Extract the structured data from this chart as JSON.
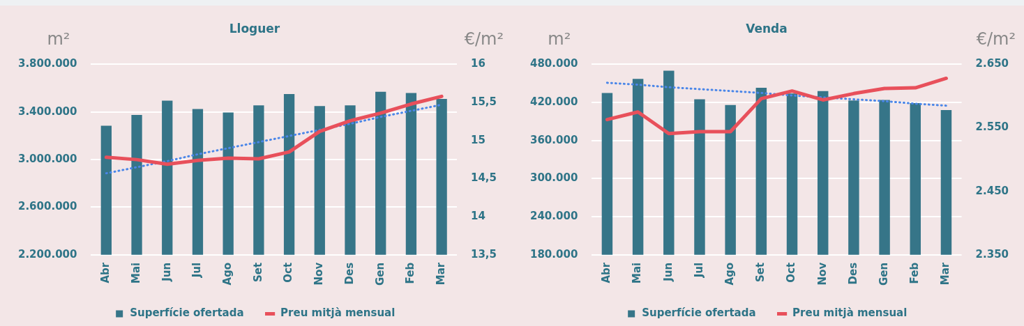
{
  "chart_data": [
    {
      "type": "bar",
      "title": "Lloguer",
      "ylabel": "m²",
      "y2label": "€/m²",
      "categories": [
        "Abr",
        "Mai",
        "Jun",
        "Jul",
        "Ago",
        "Set",
        "Oct",
        "Nov",
        "Des",
        "Gen",
        "Feb",
        "Mar"
      ],
      "series": [
        {
          "name": "Superfície ofertada",
          "color": "#367588",
          "values": [
            3285000,
            3375000,
            3495000,
            3425000,
            3395000,
            3455000,
            3550000,
            3450000,
            3455000,
            3570000,
            3560000,
            3510000
          ]
        },
        {
          "name": "Preu mitjà mensual",
          "type": "line",
          "axis": "y2",
          "color": "#e8505b",
          "values": [
            14.78,
            14.75,
            14.69,
            14.74,
            14.77,
            14.76,
            14.85,
            15.12,
            15.26,
            15.36,
            15.48,
            15.58
          ]
        },
        {
          "type": "line",
          "axis": "y2",
          "color": "#4a86e8",
          "line_style": "dotted",
          "values": [
            14.57,
            14.65,
            14.73,
            14.82,
            14.9,
            14.98,
            15.06,
            15.14,
            15.22,
            15.31,
            15.39,
            15.47
          ]
        }
      ],
      "ylim": [
        2200000,
        3800000
      ],
      "yticks": [
        {
          "value": 2200000,
          "label": "2.200.000"
        },
        {
          "value": 2600000,
          "label": "2.600.000"
        },
        {
          "value": 3000000,
          "label": "3.000.000"
        },
        {
          "value": 3400000,
          "label": "3.400.000"
        },
        {
          "value": 3800000,
          "label": "3.800.000"
        }
      ],
      "y2lim": [
        13.5,
        16
      ],
      "y2ticks": [
        {
          "value": 13.5,
          "label": "13,5"
        },
        14,
        {
          "value": 14.5,
          "label": "14,5"
        },
        15,
        {
          "value": 15.5,
          "label": "15,5"
        },
        16
      ],
      "grid": "y",
      "legend": "bottom",
      "marker": "none"
    },
    {
      "type": "bar",
      "title": "Venda",
      "ylabel": "m²",
      "y2label": "€/m²",
      "categories": [
        "Abr",
        "Mai",
        "Jun",
        "Jul",
        "Ago",
        "Set",
        "Oct",
        "Nov",
        "Des",
        "Gen",
        "Feb",
        "Mar"
      ],
      "series": [
        {
          "name": "Superfície ofertada",
          "color": "#367588",
          "values": [
            435000,
            457000,
            470000,
            425000,
            416000,
            443000,
            434000,
            438000,
            423000,
            424000,
            419000,
            408000
          ]
        },
        {
          "name": "Preu mitjà mensual",
          "type": "line",
          "axis": "y2",
          "color": "#e8505b",
          "values": [
            2563,
            2575,
            2541,
            2544,
            2544,
            2596,
            2608,
            2594,
            2604,
            2612,
            2613,
            2628
          ]
        },
        {
          "type": "line",
          "axis": "y2",
          "color": "#4a86e8",
          "line_style": "dotted",
          "values": [
            2621,
            2618,
            2614,
            2611,
            2608,
            2605,
            2601,
            2598,
            2595,
            2592,
            2588,
            2585
          ]
        }
      ],
      "ylim": [
        180000,
        480000
      ],
      "yticks": [
        {
          "value": 180000,
          "label": "180.000"
        },
        {
          "value": 240000,
          "label": "240.000"
        },
        {
          "value": 300000,
          "label": "300.000"
        },
        {
          "value": 360000,
          "label": "360.000"
        },
        {
          "value": 420000,
          "label": "420.000"
        },
        {
          "value": 480000,
          "label": "480.000"
        }
      ],
      "y2lim": [
        2350,
        2650
      ],
      "y2ticks": [
        {
          "value": 2350,
          "label": "2.350"
        },
        {
          "value": 2450,
          "label": "2.450"
        },
        {
          "value": 2550,
          "label": "2.550"
        },
        {
          "value": 2650,
          "label": "2.650"
        }
      ],
      "grid": "y",
      "legend": "bottom",
      "marker": "none"
    }
  ]
}
